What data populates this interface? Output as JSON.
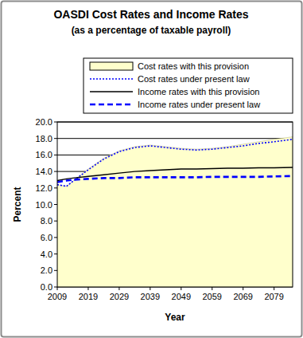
{
  "chart_data": {
    "type": "line",
    "title": "OASDI Cost Rates and Income Rates",
    "subtitle": "(as a percentage of taxable payroll)",
    "x_label": "Year",
    "y_label": "Percent",
    "x": [
      2009,
      2012,
      2014,
      2019,
      2024,
      2029,
      2034,
      2039,
      2044,
      2049,
      2054,
      2059,
      2064,
      2069,
      2074,
      2079,
      2085
    ],
    "series": [
      {
        "name": "Cost rates with this provision",
        "type": "area",
        "color": "#ffffcc",
        "values": [
          12.4,
          12.2,
          12.8,
          14.3,
          15.6,
          16.5,
          17.0,
          17.2,
          17.0,
          16.8,
          16.7,
          16.8,
          17.0,
          17.3,
          17.6,
          17.9,
          18.2
        ]
      },
      {
        "name": "Cost rates under present law",
        "type": "line",
        "color": "#0000ff",
        "line_style": "dotted",
        "values": [
          12.4,
          12.2,
          12.8,
          14.2,
          15.5,
          16.4,
          16.9,
          17.1,
          16.9,
          16.7,
          16.6,
          16.7,
          16.9,
          17.1,
          17.4,
          17.6,
          17.9
        ]
      },
      {
        "name": "Income rates with this provision",
        "type": "line",
        "color": "#000000",
        "line_style": "solid",
        "values": [
          12.9,
          13.1,
          13.2,
          13.4,
          13.6,
          13.8,
          14.0,
          14.1,
          14.2,
          14.3,
          14.3,
          14.35,
          14.4,
          14.4,
          14.45,
          14.45,
          14.5
        ]
      },
      {
        "name": "Income rates under present law",
        "type": "line",
        "color": "#0000ff",
        "line_style": "dashed",
        "values": [
          12.7,
          12.9,
          13.0,
          13.1,
          13.2,
          13.2,
          13.3,
          13.3,
          13.3,
          13.3,
          13.3,
          13.35,
          13.35,
          13.35,
          13.35,
          13.4,
          13.45
        ]
      }
    ],
    "xlim": [
      2009,
      2085
    ],
    "xticks": [
      2009,
      2019,
      2029,
      2039,
      2049,
      2059,
      2069,
      2079
    ],
    "ylim": [
      0,
      20
    ],
    "yticks": [
      {
        "value": 0,
        "label": "0.0"
      },
      {
        "value": 2,
        "label": "2.0"
      },
      {
        "value": 4,
        "label": "4.0"
      },
      {
        "value": 6,
        "label": "6.0"
      },
      {
        "value": 8,
        "label": "8.0"
      },
      {
        "value": 10,
        "label": "10.0"
      },
      {
        "value": 12,
        "label": "12.0"
      },
      {
        "value": 14,
        "label": "14.0"
      },
      {
        "value": 16,
        "label": "16.0"
      },
      {
        "value": 18,
        "label": "18.0"
      },
      {
        "value": 20,
        "label": "20.0"
      }
    ],
    "grid": true,
    "legend": "top"
  }
}
